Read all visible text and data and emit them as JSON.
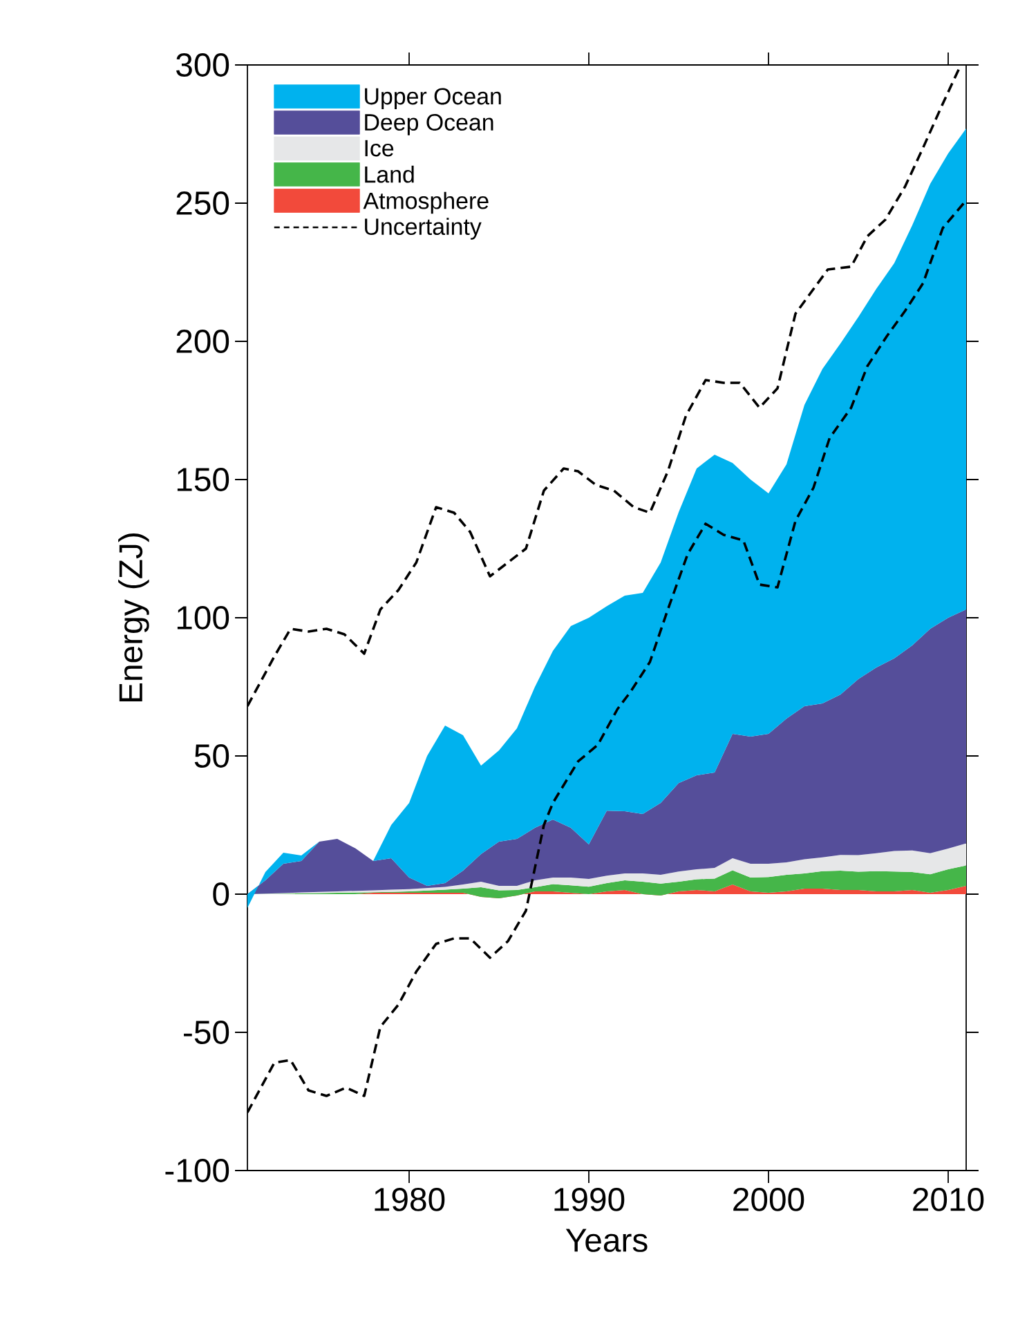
{
  "chart_data": {
    "type": "area",
    "stacked": true,
    "xlabel": "Years",
    "ylabel": "Energy (ZJ)",
    "x": [
      1971,
      1972,
      1973,
      1974,
      1975,
      1976,
      1977,
      1978,
      1979,
      1980,
      1981,
      1982,
      1983,
      1984,
      1985,
      1986,
      1987,
      1988,
      1989,
      1990,
      1991,
      1992,
      1993,
      1994,
      1995,
      1996,
      1997,
      1998,
      1999,
      2000,
      2001,
      2002,
      2003,
      2004,
      2005,
      2006,
      2007,
      2008,
      2009,
      2010,
      2011
    ],
    "xlim": [
      1971,
      2011
    ],
    "xticks": [
      1980,
      1990,
      2000,
      2010
    ],
    "ylim": [
      -100,
      300
    ],
    "yticks": [
      -100,
      -50,
      0,
      50,
      100,
      150,
      200,
      250,
      300
    ],
    "grid": false,
    "legend": "top left",
    "marker": "none",
    "series": [
      {
        "name": "Atmosphere",
        "color": "#f24a3b",
        "values": [
          0,
          0,
          0,
          0,
          0,
          0,
          0,
          0.5,
          0.5,
          0.5,
          0.5,
          0.5,
          0.5,
          -1,
          -1.5,
          -0.5,
          1,
          1,
          0.5,
          0,
          1,
          1.5,
          0,
          -0.5,
          1,
          1.5,
          1,
          3.5,
          1,
          0.5,
          1,
          2,
          2,
          1.5,
          1.5,
          1,
          1,
          1.5,
          0.5,
          1.5,
          3
        ]
      },
      {
        "name": "Land",
        "color": "#45b649",
        "values": [
          0,
          0.1,
          0.2,
          0.3,
          0.4,
          0.5,
          0.6,
          0.2,
          0.3,
          0.5,
          0.8,
          1.1,
          1.5,
          3.5,
          2.9,
          2,
          1.5,
          2.6,
          2.7,
          2.7,
          3,
          3.5,
          4.5,
          4.3,
          3.5,
          3.9,
          4.6,
          5.1,
          5,
          5.7,
          6,
          5.5,
          6.3,
          7,
          6.6,
          7.3,
          7.2,
          6.5,
          6.7,
          7.5,
          7.4
        ]
      },
      {
        "name": "Ice",
        "color": "#e6e7e8",
        "values": [
          0,
          0.1,
          0.2,
          0.3,
          0.4,
          0.5,
          0.6,
          0.7,
          0.8,
          0.8,
          0.9,
          1,
          1.5,
          2,
          1.6,
          1.5,
          2.5,
          2.4,
          2.8,
          2.8,
          2.7,
          2.5,
          3,
          3.2,
          3.7,
          3.6,
          3.9,
          4.4,
          5,
          4.8,
          4.5,
          5.1,
          5,
          5.7,
          6,
          6.5,
          7.4,
          7.8,
          7.6,
          7.5,
          8
        ]
      },
      {
        "name": "Deep Ocean",
        "color": "#554e9a",
        "values": [
          0,
          4.8,
          10.6,
          11.4,
          18.2,
          19,
          15.4,
          10.6,
          11.4,
          4.2,
          0.8,
          1.4,
          5,
          10,
          16,
          17,
          19,
          21,
          18,
          12.5,
          23.5,
          22.5,
          21.5,
          26,
          32,
          34,
          34.5,
          45,
          46,
          47,
          52,
          55.4,
          55.7,
          58,
          63.7,
          67.2,
          69.7,
          74.2,
          81.2,
          83.5,
          84.6
        ]
      },
      {
        "name": "Upper Ocean",
        "color": "#00b2ee",
        "values": [
          -5,
          3,
          4,
          2,
          0,
          0,
          0,
          0,
          12,
          27,
          47,
          57,
          49,
          32,
          33,
          40,
          51,
          61,
          73,
          82,
          74,
          78,
          80,
          87,
          98,
          111,
          115,
          98,
          93,
          87,
          92,
          109,
          121,
          127,
          131,
          137,
          143,
          152,
          161,
          168,
          174
        ]
      },
      {
        "name": "Uncertainty",
        "type": "line",
        "line_style": "dashed",
        "color": "#000000",
        "x": [
          1971,
          1972.5,
          1973.4,
          1974.4,
          1975.4,
          1976.4,
          1977.5,
          1978.4,
          1979.4,
          1980.4,
          1981.5,
          1982.5,
          1983.4,
          1984.5,
          1985.5,
          1986.5,
          1987.5,
          1988.6,
          1989.4,
          1990.4,
          1991.4,
          1992.5,
          1993.4,
          1994.4,
          1995.4,
          1996.5,
          1997.5,
          1998.4,
          1999.5,
          2000.5,
          2001.5,
          2003.3,
          2004.6,
          2005.5,
          2006.5,
          2007.6,
          2008.6,
          2009.7,
          2010.7
        ],
        "values": [
          68,
          86,
          96,
          95,
          96,
          94,
          87,
          103,
          110,
          120,
          140,
          138,
          131,
          115,
          120,
          125,
          146,
          154,
          153,
          148,
          146,
          140,
          138,
          153,
          173,
          186,
          185,
          185,
          176,
          183,
          210,
          226,
          227,
          238,
          244,
          256,
          270,
          286,
          300
        ]
      },
      {
        "type": "line",
        "line_style": "dashed",
        "color": "#000000",
        "x": [
          1971,
          1972.5,
          1973.4,
          1974.4,
          1975.4,
          1976.5,
          1977.5,
          1978.4,
          1979.4,
          1980.4,
          1981.5,
          1982.5,
          1983.4,
          1984.5,
          1985.5,
          1986.5,
          1987.5,
          1988,
          1989.4,
          1990.5,
          1991.6,
          1992.3,
          1993.4,
          1994.4,
          1995.5,
          1996.5,
          1997.5,
          1998.6,
          1999.5,
          2000.5,
          2001.5,
          2002.5,
          2003.4,
          2004.6,
          2005.5,
          2006.6,
          2007.6,
          2008.6,
          2009.7,
          2011
        ],
        "values": [
          -79,
          -61,
          -60,
          -71,
          -73,
          -70,
          -73,
          -48,
          -40,
          -28,
          -18,
          -16,
          -16,
          -23,
          -17,
          -6,
          25,
          33,
          48,
          54,
          67,
          73,
          84,
          103,
          123,
          134,
          130,
          128,
          112,
          111,
          135,
          147,
          165,
          176,
          191,
          202,
          211,
          221,
          241,
          251
        ]
      }
    ]
  }
}
